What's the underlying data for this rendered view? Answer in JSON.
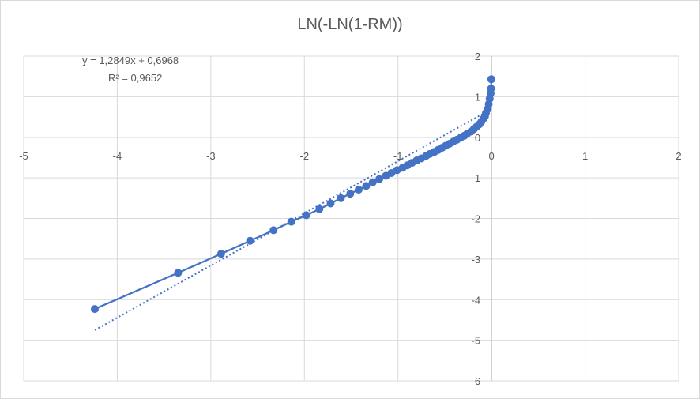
{
  "chart_data": {
    "type": "scatter",
    "title": "LN(-LN(1-RM))",
    "xlim": [
      -5,
      2
    ],
    "ylim": [
      -6,
      2
    ],
    "grid": true,
    "legend": "none",
    "x_ticks": [
      -5,
      -4,
      -3,
      -2,
      -1,
      0,
      1,
      2
    ],
    "y_ticks": [
      2,
      1,
      0,
      -1,
      -2,
      -3,
      -4,
      -5,
      -6
    ],
    "x_tick_labels": [
      "-5",
      "-4",
      "-3",
      "-2",
      "-1",
      "0",
      "1",
      "2"
    ],
    "y_tick_labels": [
      "2",
      "1",
      "0",
      "-1",
      "-2",
      "-3",
      "-4",
      "-5",
      "-6"
    ],
    "series": [
      {
        "color": "#4472c4",
        "points": [
          {
            "x": -4.24,
            "y": -4.23
          },
          {
            "x": -3.35,
            "y": -3.34
          },
          {
            "x": -2.89,
            "y": -2.87
          },
          {
            "x": -2.58,
            "y": -2.55
          },
          {
            "x": -2.33,
            "y": -2.29
          },
          {
            "x": -2.14,
            "y": -2.08
          },
          {
            "x": -1.98,
            "y": -1.92
          },
          {
            "x": -1.84,
            "y": -1.77
          },
          {
            "x": -1.72,
            "y": -1.63
          },
          {
            "x": -1.61,
            "y": -1.5
          },
          {
            "x": -1.51,
            "y": -1.39
          },
          {
            "x": -1.42,
            "y": -1.29
          },
          {
            "x": -1.34,
            "y": -1.2
          },
          {
            "x": -1.27,
            "y": -1.11
          },
          {
            "x": -1.2,
            "y": -1.03
          },
          {
            "x": -1.13,
            "y": -0.95
          },
          {
            "x": -1.07,
            "y": -0.88
          },
          {
            "x": -1.01,
            "y": -0.81
          },
          {
            "x": -0.95,
            "y": -0.75
          },
          {
            "x": -0.9,
            "y": -0.69
          },
          {
            "x": -0.85,
            "y": -0.63
          },
          {
            "x": -0.8,
            "y": -0.57
          },
          {
            "x": -0.75,
            "y": -0.52
          },
          {
            "x": -0.7,
            "y": -0.46
          },
          {
            "x": -0.66,
            "y": -0.41
          },
          {
            "x": -0.61,
            "y": -0.36
          },
          {
            "x": -0.57,
            "y": -0.31
          },
          {
            "x": -0.53,
            "y": -0.26
          },
          {
            "x": -0.49,
            "y": -0.21
          },
          {
            "x": -0.45,
            "y": -0.16
          },
          {
            "x": -0.41,
            "y": -0.11
          },
          {
            "x": -0.37,
            "y": -0.06
          },
          {
            "x": -0.33,
            "y": -0.01
          },
          {
            "x": -0.29,
            "y": 0.04
          },
          {
            "x": -0.26,
            "y": 0.09
          },
          {
            "x": -0.22,
            "y": 0.14
          },
          {
            "x": -0.19,
            "y": 0.2
          },
          {
            "x": -0.16,
            "y": 0.26
          },
          {
            "x": -0.13,
            "y": 0.32
          },
          {
            "x": -0.11,
            "y": 0.38
          },
          {
            "x": -0.09,
            "y": 0.45
          },
          {
            "x": -0.07,
            "y": 0.52
          },
          {
            "x": -0.06,
            "y": 0.6
          },
          {
            "x": -0.04,
            "y": 0.7
          },
          {
            "x": -0.03,
            "y": 0.82
          },
          {
            "x": -0.02,
            "y": 0.95
          },
          {
            "x": -0.01,
            "y": 1.08
          },
          {
            "x": -0.005,
            "y": 1.2
          },
          {
            "x": -0.002,
            "y": 1.43
          }
        ]
      }
    ],
    "trendline": {
      "type": "linear",
      "slope": 1.2849,
      "intercept": 0.6968,
      "x_range": [
        -4.24,
        -0.002
      ],
      "style": "dotted",
      "equation_label": "y = 1,2849x + 0,6968",
      "r2_label": "R² = 0,9652"
    }
  }
}
